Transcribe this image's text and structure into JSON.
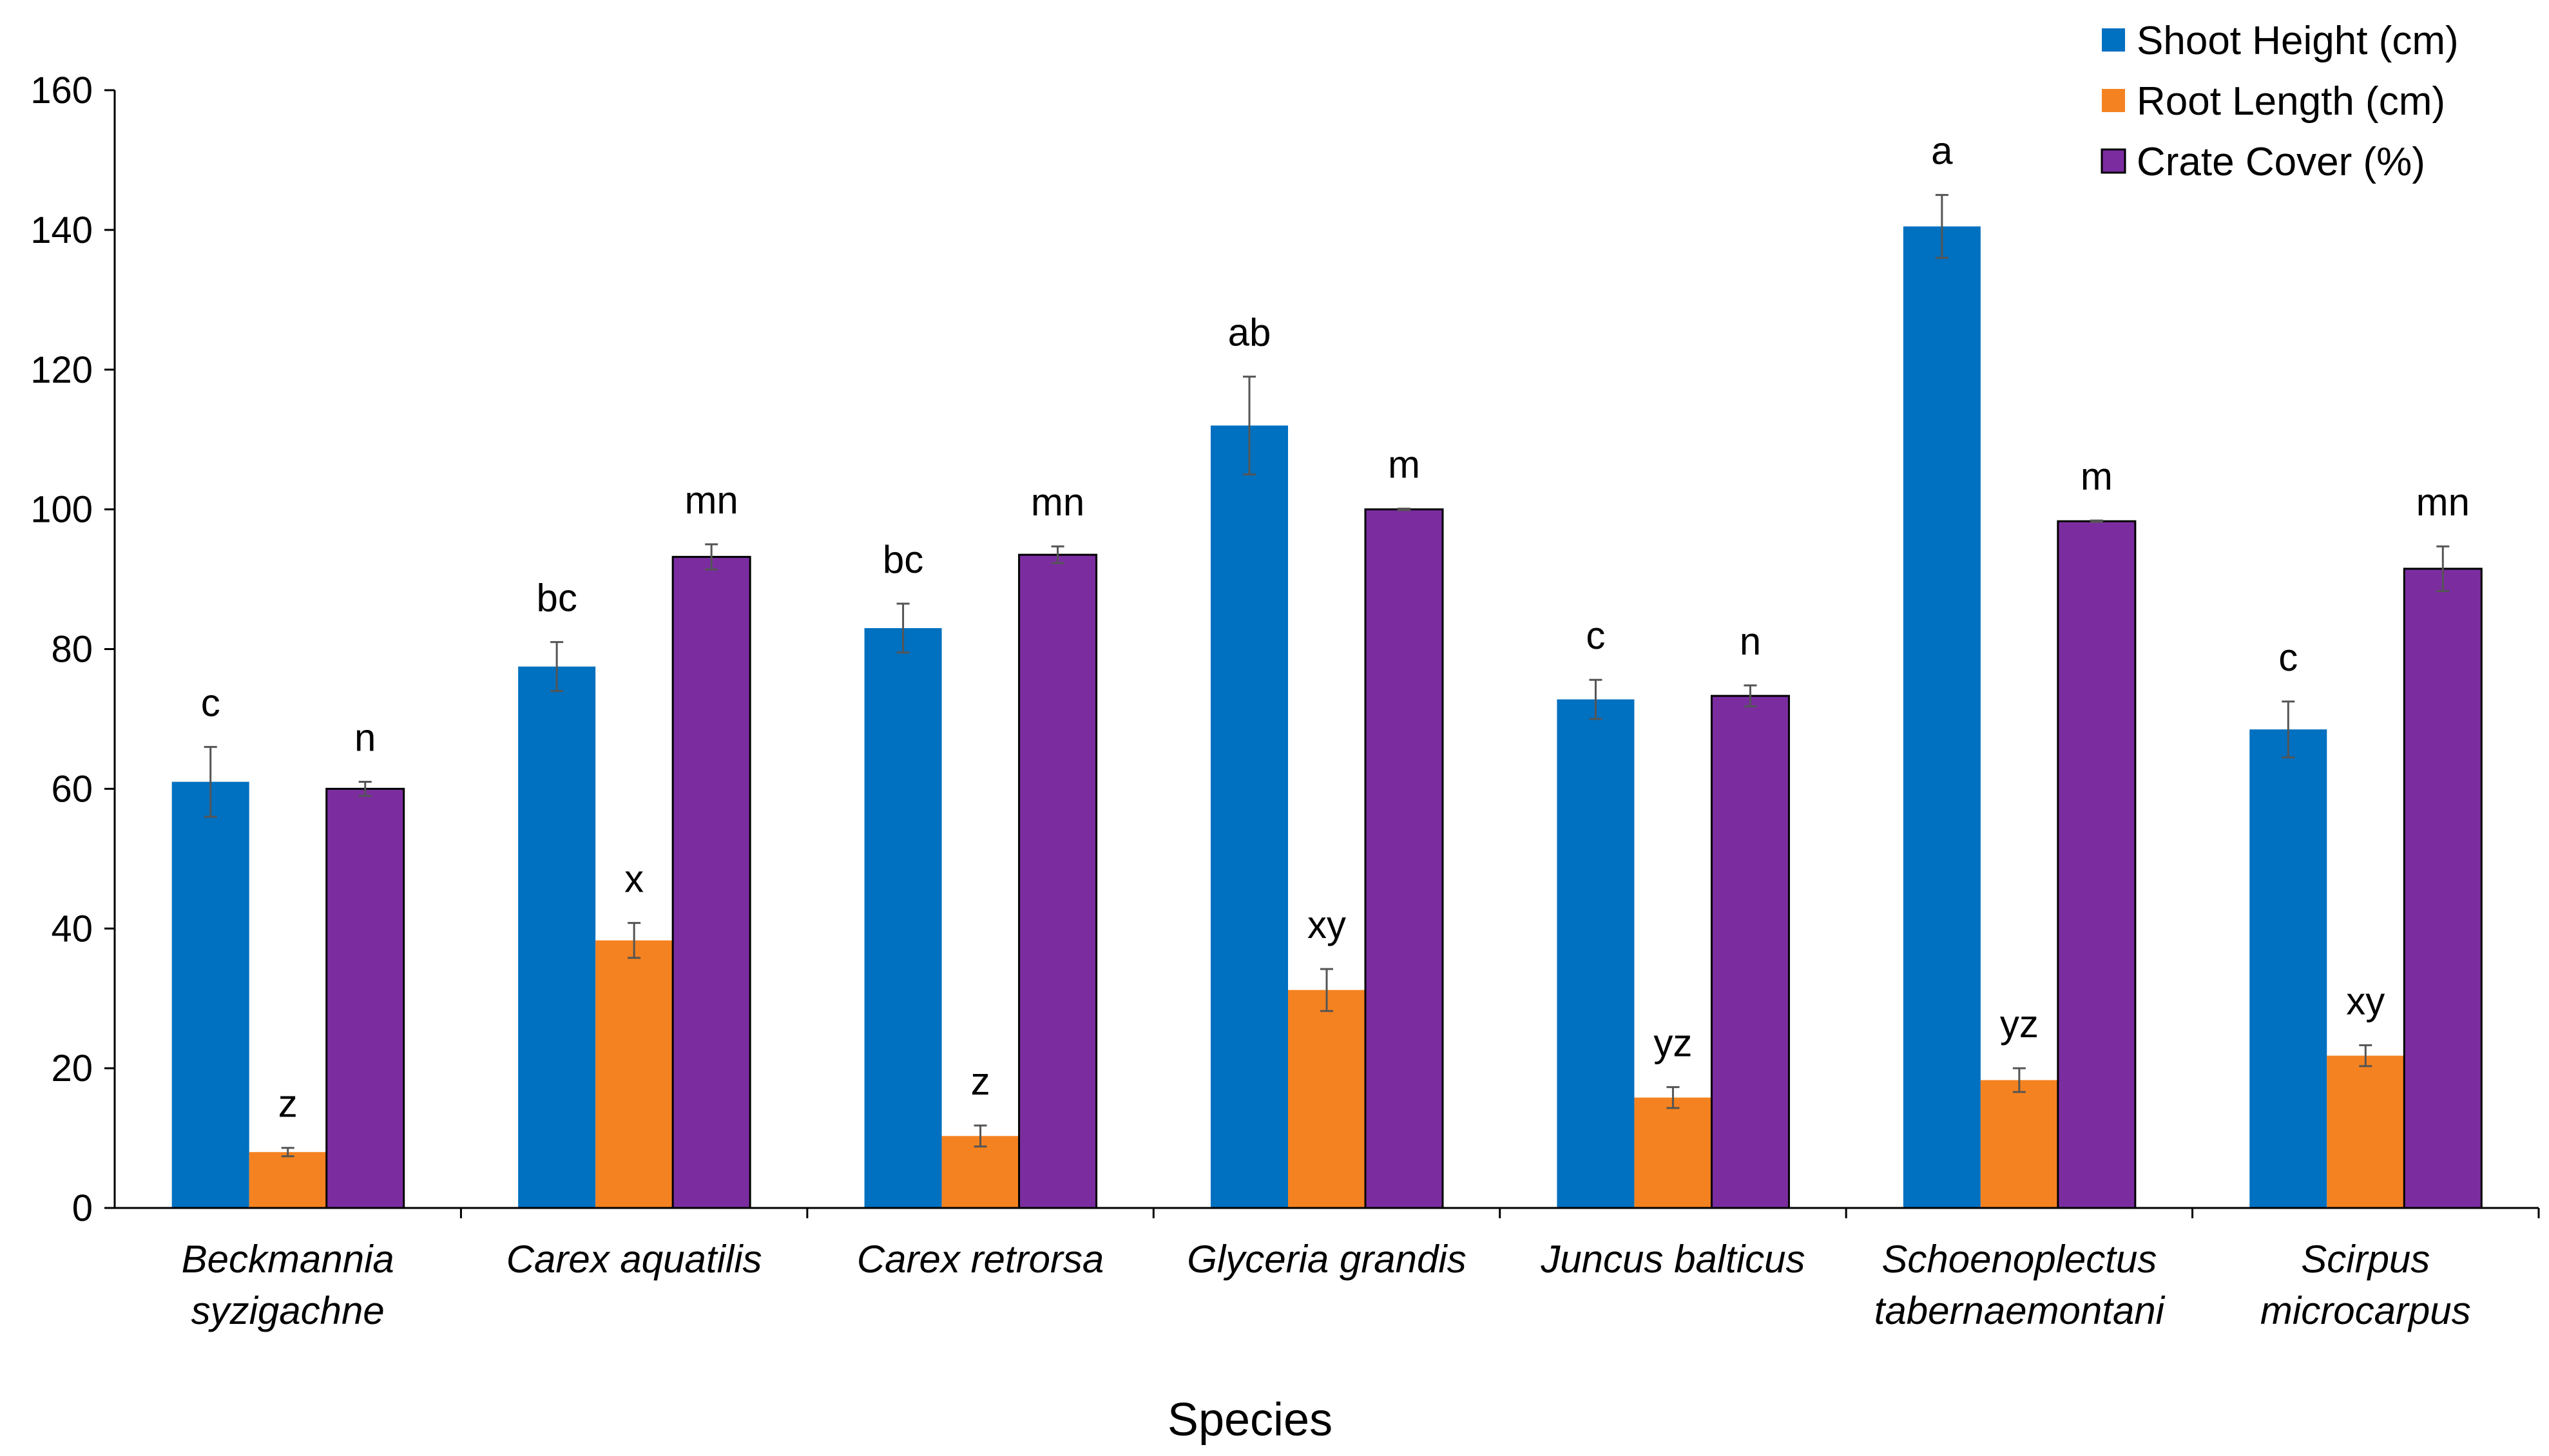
{
  "chart_data": {
    "type": "bar",
    "title": "",
    "xlabel": "Species",
    "ylabel": "",
    "ylim": [
      0,
      160
    ],
    "yticks": [
      0,
      20,
      40,
      60,
      80,
      100,
      120,
      140,
      160
    ],
    "grid": false,
    "legend_position": "top-right",
    "categories": [
      [
        "Beckmannia",
        "syzigachne"
      ],
      [
        "Carex aquatilis"
      ],
      [
        "Carex retrorsa"
      ],
      [
        "Glyceria grandis"
      ],
      [
        "Juncus balticus"
      ],
      [
        "Schoenoplectus",
        "tabernaemontani"
      ],
      [
        "Scirpus",
        "microcarpus"
      ]
    ],
    "series": [
      {
        "name": "Shoot Height (cm)",
        "color": "#0070C0",
        "values": [
          61,
          77.5,
          83,
          112,
          72.8,
          140.5,
          68.5
        ],
        "errors": [
          5,
          3.5,
          3.5,
          7,
          2.8,
          4.5,
          4
        ],
        "letters": [
          "c",
          "bc",
          "bc",
          "ab",
          "c",
          "a",
          "c"
        ]
      },
      {
        "name": "Root Length (cm)",
        "color": "#F58220",
        "values": [
          8,
          38.3,
          10.3,
          31.2,
          15.8,
          18.3,
          21.8
        ],
        "errors": [
          0.6,
          2.5,
          1.5,
          3,
          1.5,
          1.7,
          1.5
        ],
        "letters": [
          "z",
          "x",
          "z",
          "xy",
          "yz",
          "yz",
          "xy"
        ]
      },
      {
        "name": "Crate Cover (%)",
        "color": "#7B2DA0",
        "values": [
          60,
          93.2,
          93.5,
          100,
          73.3,
          98.3,
          91.5
        ],
        "errors": [
          1,
          1.8,
          1.2,
          0.1,
          1.5,
          0.1,
          3.2
        ],
        "letters": [
          "n",
          "mn",
          "mn",
          "m",
          "n",
          "m",
          "mn"
        ]
      }
    ]
  }
}
